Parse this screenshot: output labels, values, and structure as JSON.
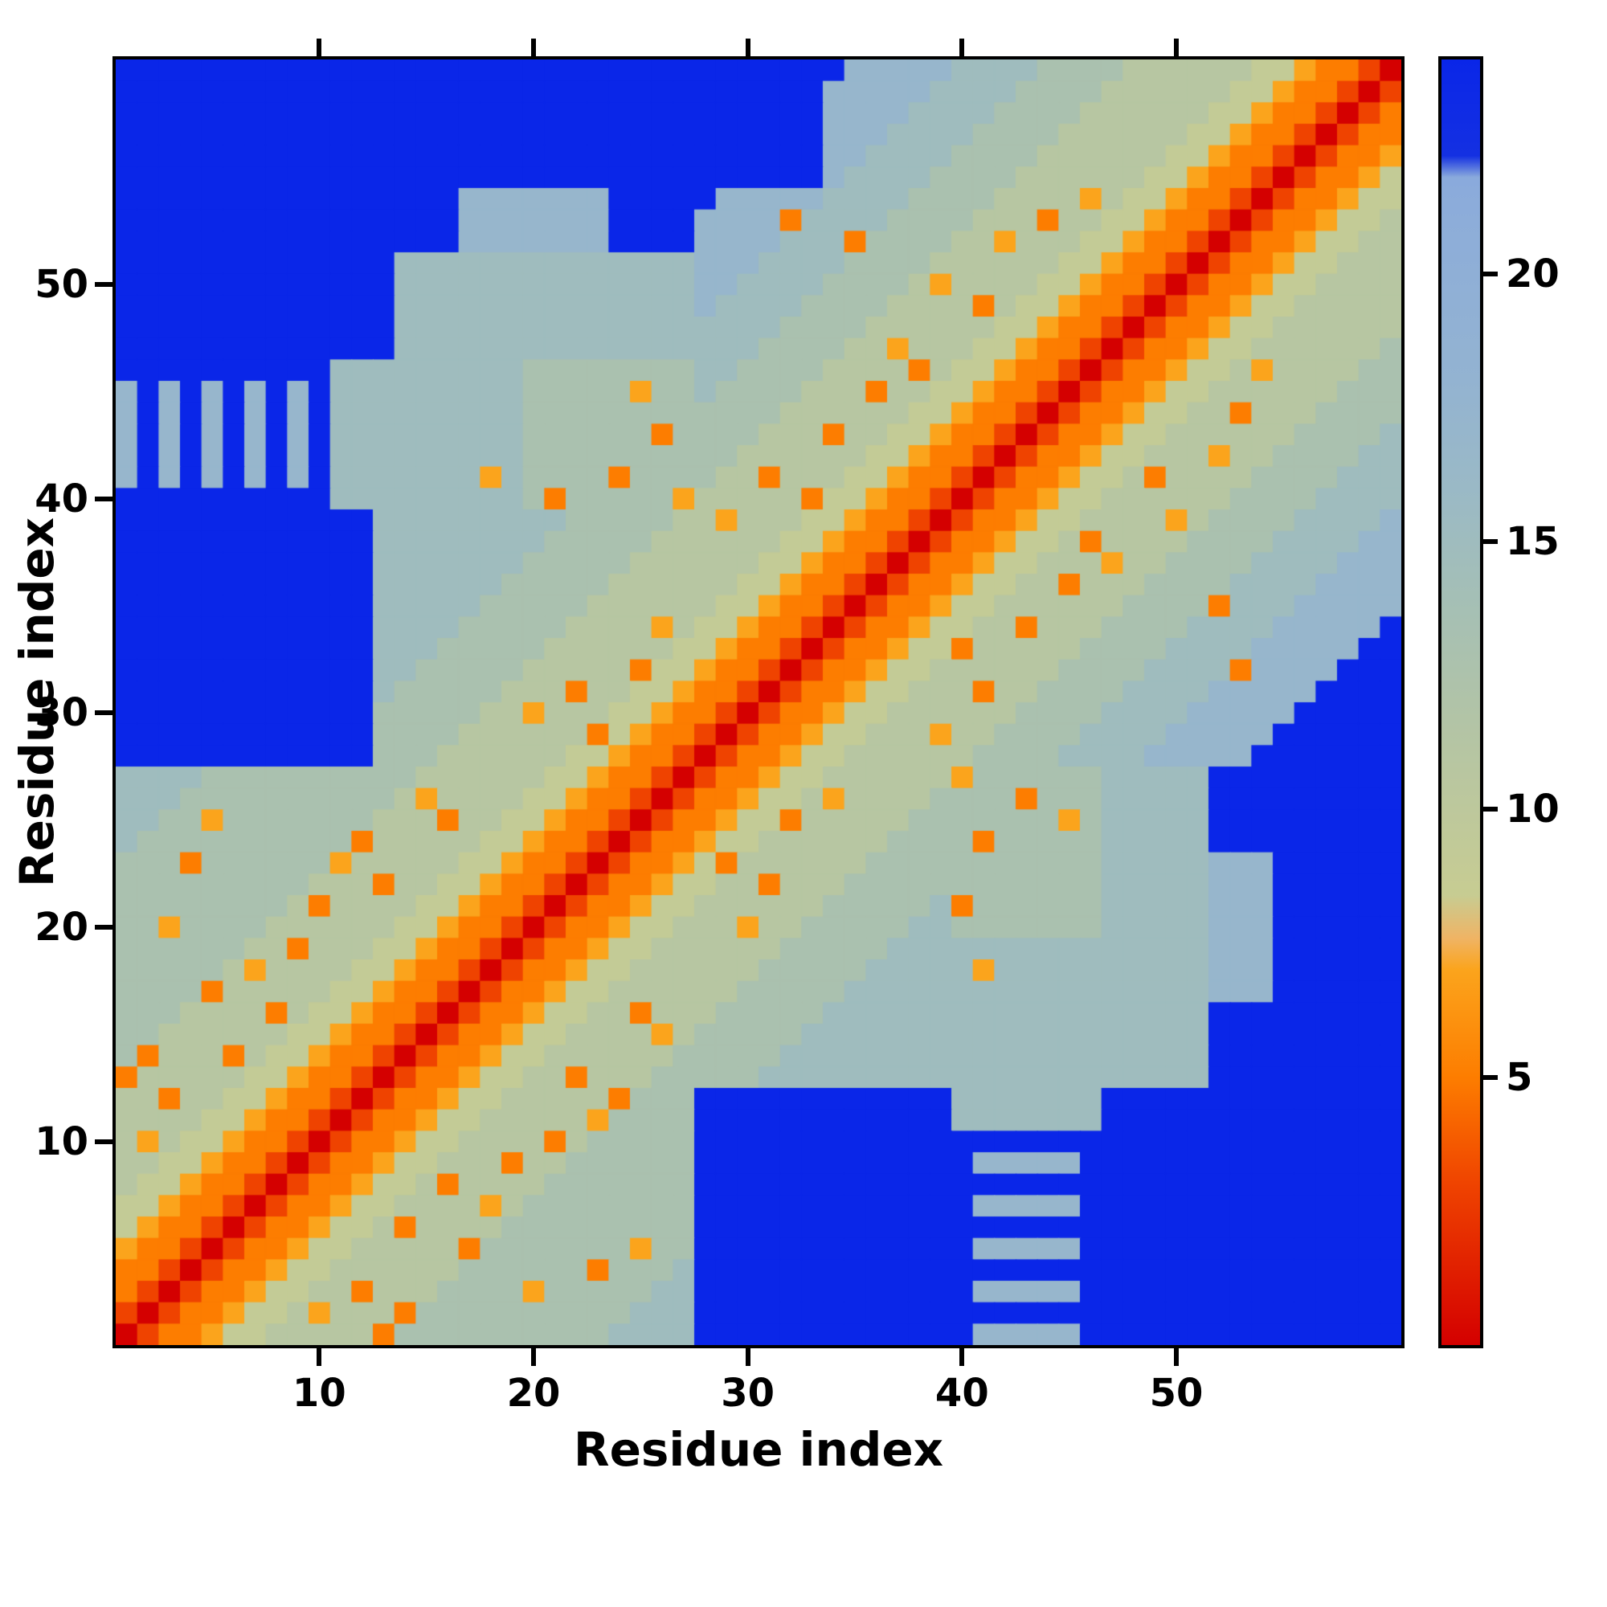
{
  "figure": {
    "x_ticks": [
      10,
      20,
      30,
      40,
      50
    ],
    "y_ticks": [
      10,
      20,
      30,
      40,
      50
    ],
    "colorbar_ticks": [
      5,
      10,
      15,
      20
    ],
    "background_color": "#ffffff",
    "axis_color": "#000000"
  },
  "chart_data": {
    "type": "heatmap",
    "title": "",
    "xlabel": "Residue index",
    "ylabel": "Residue index",
    "n": 60,
    "x_range": [
      1,
      60
    ],
    "y_range": [
      1,
      60
    ],
    "vmin": 0,
    "vmax": 24,
    "legend_position": "colorbar-right",
    "grid": false,
    "char_to_value": {
      "0": 0,
      "1": 3,
      "2": 5,
      "3": 7,
      "4": 9,
      "5": 11,
      "6": 13,
      "7": 15,
      "8": 17,
      "9": 19,
      ".": 24
    },
    "encoding_note": "rows_top_to_bottom[0] is residue row 60, last row is residue 1; columns run residue 1..60 left to right; each character maps to a distance value via char_to_value",
    "colormap_stops": [
      [
        0,
        "#d40000"
      ],
      [
        3,
        "#ef4300"
      ],
      [
        5,
        "#fd7d00"
      ],
      [
        7,
        "#fba41c"
      ],
      [
        7.6,
        "#efb465"
      ],
      [
        8.4,
        "#c7cc92"
      ],
      [
        10,
        "#bdc89c"
      ],
      [
        12,
        "#b0c3a8"
      ],
      [
        14,
        "#a4bfb6"
      ],
      [
        16,
        "#9ab9c6"
      ],
      [
        18,
        "#93b3d1"
      ],
      [
        21,
        "#8dadd9"
      ],
      [
        21.8,
        "#8aaadc"
      ],
      [
        22.2,
        "#1430e2"
      ],
      [
        24,
        "#0a26e8"
      ]
    ],
    "rows_top_to_bottom": [
      "..................................88888777766665555554432210",
      ".................................888887777666655555544322101",
      ".................................888877776666555555443221012",
      ".................................888777766665555554432210122",
      ".................................887777666655555544322101223",
      ".................................877776666555555443221012234",
      "................8888888.....88888777766665555354432210122344",
      "................8888888....888827777666655525544322101223445",
      "................8888888....888877726666553555443221012234455",
      ".............77777777777777888777766665555554432210122344555",
      ".............77777777777777887777666653555544322101223445555",
      ".............77777777777777877776666555525443221012234455555",
      ".............77777777777777777766665555554432210122344555555",
      ".............77777777777777777666655355544322101223445555556",
      "..........77777777766666666776666555525443221012234453555566",
      "8.8.8.8.8.77777777766666366766665552554432210122344555555666",
      "8.8.8.8.8.77777777766666666666655555544322101223445525556666",
      "8.8.8.8.8.77777777766666626666555255443221012234455555566667",
      "8.8.8.8.8.77777777766666666665555554432210122344555355666677",
      "8.8.8.8.8.77777773766662666655255544322101223445255556666777",
      "..........77777777762666663555552443221012234455555566667777",
      "............777777777666665535554432210122344555535666677778",
      "............777777776666655555544322101223445255556666777788",
      "............777777766666555555443221012234455535566667777888",
      "............777777666665555554432210122344552555666677778888",
      "............777776666655555544322101223445555556666277788888",
      "............77776666655553544322101223445525556666777788888.",
      "............7776666655555544322101223442555556666777788888..",
      "............776666655555244322101223445555556666777728888...",
      "............76666655525544322101223445552556666777788888....",
      "............6666655355544322101223445555556666777788888.....",
      "............666655555524322101223445553556666777788888......",
      "............66655555544322101223445555556666777788888.......",
      "777766666666665555554432210122344555555366666677777.........",
      "777666666666653555544322101223445355556666266677777.........",
      "776636666666555255443221012234425555566666663677777.........",
      "766666666662555554432210122344555555666626666677777.........",
      "666266666635555544322101223425555556666666666677777888......",
      "666666666555255443221012234455255566666666666677777888......",
      "666666665255554432210122344555555666667266666677777888......",
      "663666655555544322101223445553556666677666666677777888......",
      "666666552555443221012234455555566666777777777777777888......",
      "666665355554432210122344555555666667777737777777777888......",
      "666625555544322101223445555556666677777777777777777888......",
      "666555525443221012234455255566666777777777777777777.........",
      "665555554432210122344555535666667777777777777777777.........",
      "625552544322101223445555556666677777777777777777777.........",
      "255555443221012234455255566666777777777777777777777.........",
      "552554432210122344555552666............7777777..............",
      "555544322101223445555536666............7777777..............",
      "535443221012234455552566666.................................",
      "554432210122344555255666666.............88888...............",
      "544322101223445255556666666.................................",
      "443221012234455553566666666.............88888...............",
      "432210122344525555666666666.................................",
      "322101223445555526666666366.............88888...............",
      "221012234455555566666626667.................................",
      "210122344552555666636666677.............88888...............",
      "101223445355526666666666777.................................",
      "012234455555266666666667777.............88888..............."
    ]
  }
}
